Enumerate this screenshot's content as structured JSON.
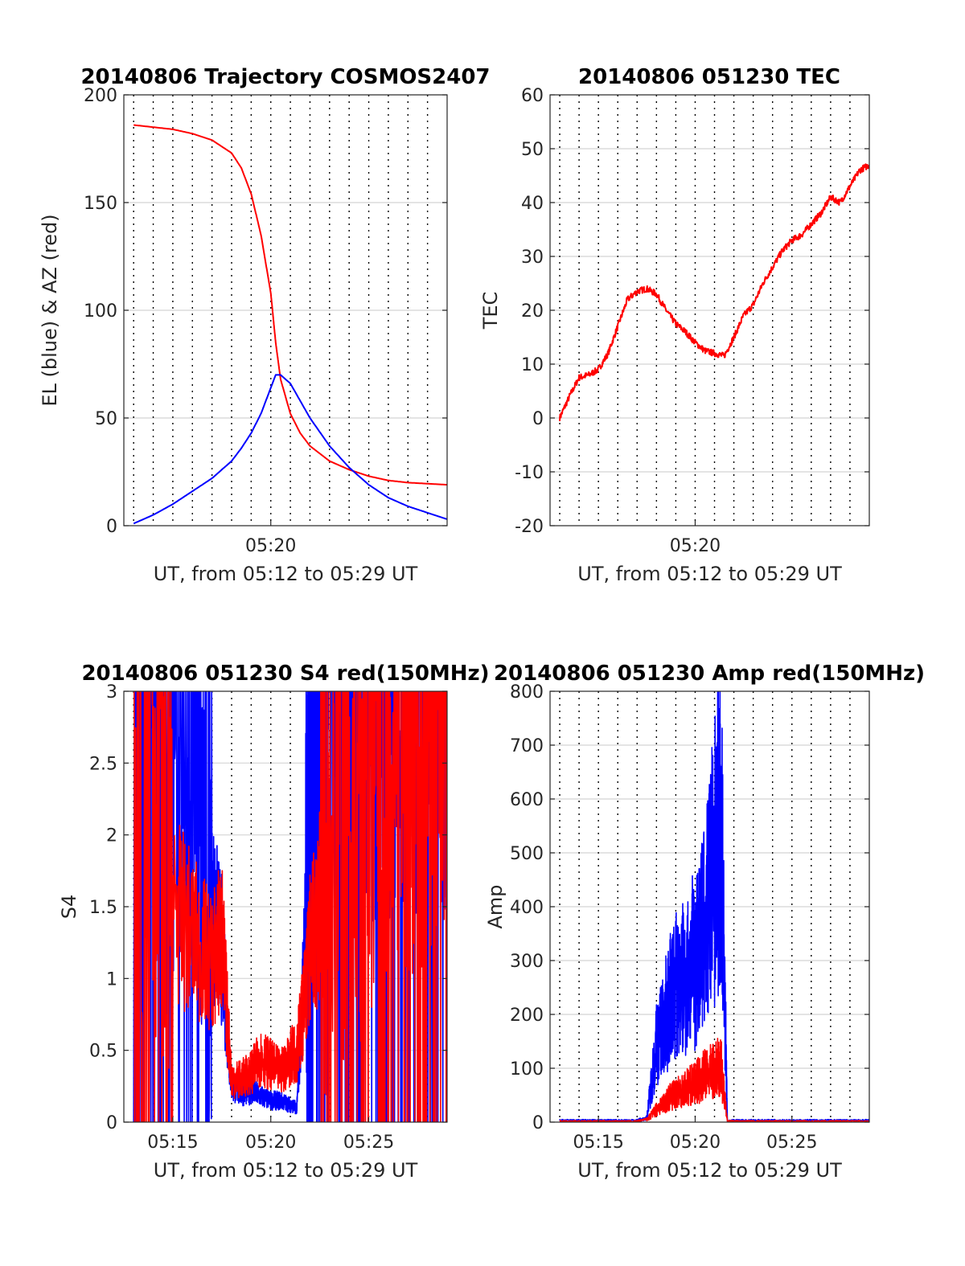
{
  "colors": {
    "el": "#0000ff",
    "az": "#ff0000",
    "red": "#ff0000",
    "blue": "#0000ff",
    "grid": "#dcdcdc",
    "axis": "#262626"
  },
  "chart_data": [
    {
      "id": "trajectory",
      "type": "line",
      "title": "20140806 Trajectory COSMOS2407",
      "xlabel": "UT, from 05:12 to 05:29 UT",
      "ylabel": "EL (blue) & AZ (red)",
      "xlim": [
        "05:12:30",
        "05:29:00"
      ],
      "ylim": [
        0,
        200
      ],
      "yticks": [
        0,
        50,
        100,
        150,
        200
      ],
      "xticks": [
        "05:20"
      ],
      "grid": "horizontal solid, vertical dotted every minute",
      "series": [
        {
          "color": "#ff0000",
          "x": [
            "05:13",
            "05:14",
            "05:15",
            "05:16",
            "05:17",
            "05:18",
            "05:18:30",
            "05:19",
            "05:19:30",
            "05:20",
            "05:20:15",
            "05:20:30",
            "05:21",
            "05:21:30",
            "05:22",
            "05:23",
            "05:24",
            "05:25",
            "05:26",
            "05:27",
            "05:28",
            "05:29"
          ],
          "values": [
            186,
            185,
            184,
            182,
            179,
            173,
            166,
            154,
            135,
            108,
            85,
            68,
            52,
            43,
            37,
            30,
            26,
            23,
            21,
            20,
            19.5,
            19
          ]
        },
        {
          "color": "#0000ff",
          "x": [
            "05:13",
            "05:14",
            "05:15",
            "05:16",
            "05:17",
            "05:18",
            "05:18:30",
            "05:19",
            "05:19:30",
            "05:20",
            "05:20:15",
            "05:20:30",
            "05:21",
            "05:21:30",
            "05:22",
            "05:23",
            "05:24",
            "05:25",
            "05:26",
            "05:27",
            "05:28",
            "05:29"
          ],
          "values": [
            1,
            5,
            10,
            16,
            22,
            30,
            36,
            43,
            52,
            64,
            70,
            70,
            66,
            58,
            50,
            37,
            27,
            19,
            13,
            9,
            6,
            3
          ]
        }
      ]
    },
    {
      "id": "tec",
      "type": "line",
      "title": "20140806 051230 TEC",
      "xlabel": "UT, from 05:12 to 05:29 UT",
      "ylabel": "TEC",
      "xlim": [
        "05:12:30",
        "05:29:00"
      ],
      "ylim": [
        -20,
        60
      ],
      "yticks": [
        -20,
        -10,
        0,
        10,
        20,
        30,
        40,
        50,
        60
      ],
      "xticks": [
        "05:20"
      ],
      "grid": "horizontal solid, vertical dotted every minute",
      "series": [
        {
          "color": "#ff0000",
          "x": [
            "05:13",
            "05:13:30",
            "05:14",
            "05:14:30",
            "05:15",
            "05:15:30",
            "05:16",
            "05:16:30",
            "05:17",
            "05:17:30",
            "05:18",
            "05:18:30",
            "05:19",
            "05:19:30",
            "05:20",
            "05:20:30",
            "05:21",
            "05:21:30",
            "05:22",
            "05:22:30",
            "05:23",
            "05:23:30",
            "05:24",
            "05:24:30",
            "05:25",
            "05:25:30",
            "05:26",
            "05:26:30",
            "05:27",
            "05:27:30",
            "05:28",
            "05:28:30",
            "05:29"
          ],
          "values": [
            0,
            4,
            7.5,
            8,
            9,
            12,
            17,
            22,
            23.5,
            24,
            23,
            20,
            17.5,
            16,
            14,
            12.5,
            12,
            11.5,
            15,
            19,
            21,
            25,
            28,
            31,
            33,
            34,
            36,
            38,
            41,
            40,
            43,
            46,
            47
          ]
        }
      ]
    },
    {
      "id": "s4",
      "type": "line",
      "title": "20140806 051230 S4 red(150MHz)",
      "xlabel": "UT, from 05:12 to 05:29 UT",
      "ylabel": "S4",
      "xlim": [
        "05:12:30",
        "05:29:00"
      ],
      "ylim": [
        0,
        3
      ],
      "yticks": [
        0,
        0.5,
        1,
        1.5,
        2,
        2.5,
        3
      ],
      "yticklabels": [
        "0",
        "0.5",
        "1",
        "1.5",
        "2",
        "2.5",
        "3"
      ],
      "xticks": [
        "05:15",
        "05:20",
        "05:25"
      ],
      "grid": "horizontal solid, vertical dotted every minute",
      "series": [
        {
          "color": "#0000ff",
          "x": [
            "05:13",
            "05:14",
            "05:15",
            "05:16",
            "05:17",
            "05:17:30",
            "05:18",
            "05:18:30",
            "05:19",
            "05:19:30",
            "05:20",
            "05:20:30",
            "05:21",
            "05:21:20",
            "05:21:40",
            "05:22",
            "05:22:30",
            "05:23",
            "05:24",
            "05:25",
            "05:26",
            "05:27",
            "05:28",
            "05:29"
          ],
          "values": [
            3,
            2.8,
            2.5,
            2.4,
            1.5,
            1.2,
            0.25,
            0.2,
            0.22,
            0.18,
            0.15,
            0.15,
            0.12,
            0.1,
            1.0,
            2.5,
            2.9,
            3,
            3,
            3,
            3,
            3,
            3,
            3
          ]
        },
        {
          "color": "#ff0000",
          "x": [
            "05:13",
            "05:14",
            "05:15",
            "05:16",
            "05:17",
            "05:17:30",
            "05:18",
            "05:18:30",
            "05:19",
            "05:19:30",
            "05:20",
            "05:20:30",
            "05:21",
            "05:21:20",
            "05:21:40",
            "05:22",
            "05:22:30",
            "05:23",
            "05:24",
            "05:25",
            "05:26",
            "05:27",
            "05:28",
            "05:29"
          ],
          "values": [
            2.0,
            2.3,
            1.5,
            1.3,
            1.1,
            1.3,
            0.3,
            0.3,
            0.35,
            0.45,
            0.4,
            0.35,
            0.45,
            0.5,
            0.8,
            1.2,
            1.5,
            1.8,
            2.0,
            2.2,
            2.3,
            2.5,
            2.6,
            2.8
          ]
        }
      ]
    },
    {
      "id": "amp",
      "type": "line",
      "title": "20140806 051230 Amp red(150MHz)",
      "xlabel": "UT, from 05:12 to 05:29 UT",
      "ylabel": "Amp",
      "xlim": [
        "05:12:30",
        "05:29:00"
      ],
      "ylim": [
        0,
        800
      ],
      "yticks": [
        0,
        100,
        200,
        300,
        400,
        500,
        600,
        700,
        800
      ],
      "xticks": [
        "05:15",
        "05:20",
        "05:25"
      ],
      "grid": "horizontal solid, vertical dotted every minute",
      "series": [
        {
          "color": "#0000ff",
          "x": [
            "05:13",
            "05:14",
            "05:15",
            "05:16",
            "05:17",
            "05:17:30",
            "05:18",
            "05:18:30",
            "05:19",
            "05:19:30",
            "05:20",
            "05:20:30",
            "05:21",
            "05:21:20",
            "05:21:40",
            "05:22",
            "05:23",
            "05:24",
            "05:25",
            "05:26",
            "05:27",
            "05:28",
            "05:29"
          ],
          "values": [
            2,
            2,
            2,
            2,
            2,
            10,
            180,
            250,
            320,
            330,
            380,
            450,
            600,
            720,
            0,
            2,
            2,
            2,
            2,
            2,
            2,
            2,
            2
          ]
        },
        {
          "color": "#ff0000",
          "x": [
            "05:13",
            "05:14",
            "05:15",
            "05:16",
            "05:17",
            "05:17:30",
            "05:18",
            "05:18:30",
            "05:19",
            "05:19:30",
            "05:20",
            "05:20:30",
            "05:21",
            "05:21:20",
            "05:21:40",
            "05:22",
            "05:23",
            "05:24",
            "05:25",
            "05:26",
            "05:27",
            "05:28",
            "05:29"
          ],
          "values": [
            0,
            0,
            0,
            0,
            0,
            5,
            30,
            50,
            70,
            80,
            90,
            110,
            120,
            130,
            0,
            0,
            0,
            0,
            0,
            0,
            0,
            0,
            0
          ]
        }
      ]
    }
  ]
}
